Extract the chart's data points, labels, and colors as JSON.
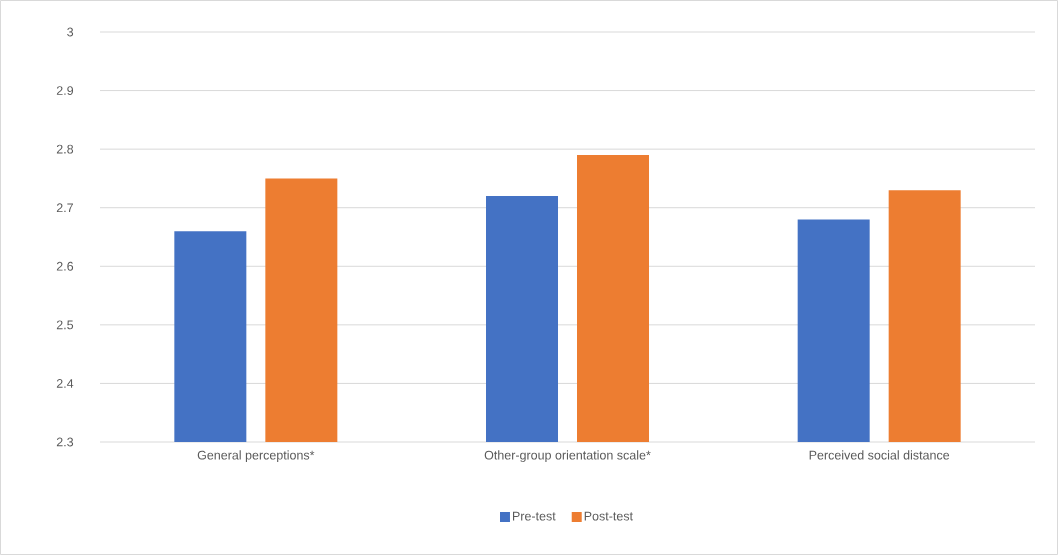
{
  "chart_data": {
    "type": "bar",
    "categories": [
      "General perceptions*",
      "Other-group orientation scale*",
      "Perceived social distance"
    ],
    "series": [
      {
        "name": "Pre-test",
        "color": "#4472c4",
        "values": [
          2.66,
          2.72,
          2.68
        ]
      },
      {
        "name": "Post-test",
        "color": "#ed7d31",
        "values": [
          2.75,
          2.79,
          2.73
        ]
      }
    ],
    "ylim": [
      2.3,
      3
    ],
    "yticks": [
      2.3,
      2.4,
      2.5,
      2.6,
      2.7,
      2.8,
      2.9,
      3
    ],
    "grid": "y",
    "legend": "bottom"
  }
}
